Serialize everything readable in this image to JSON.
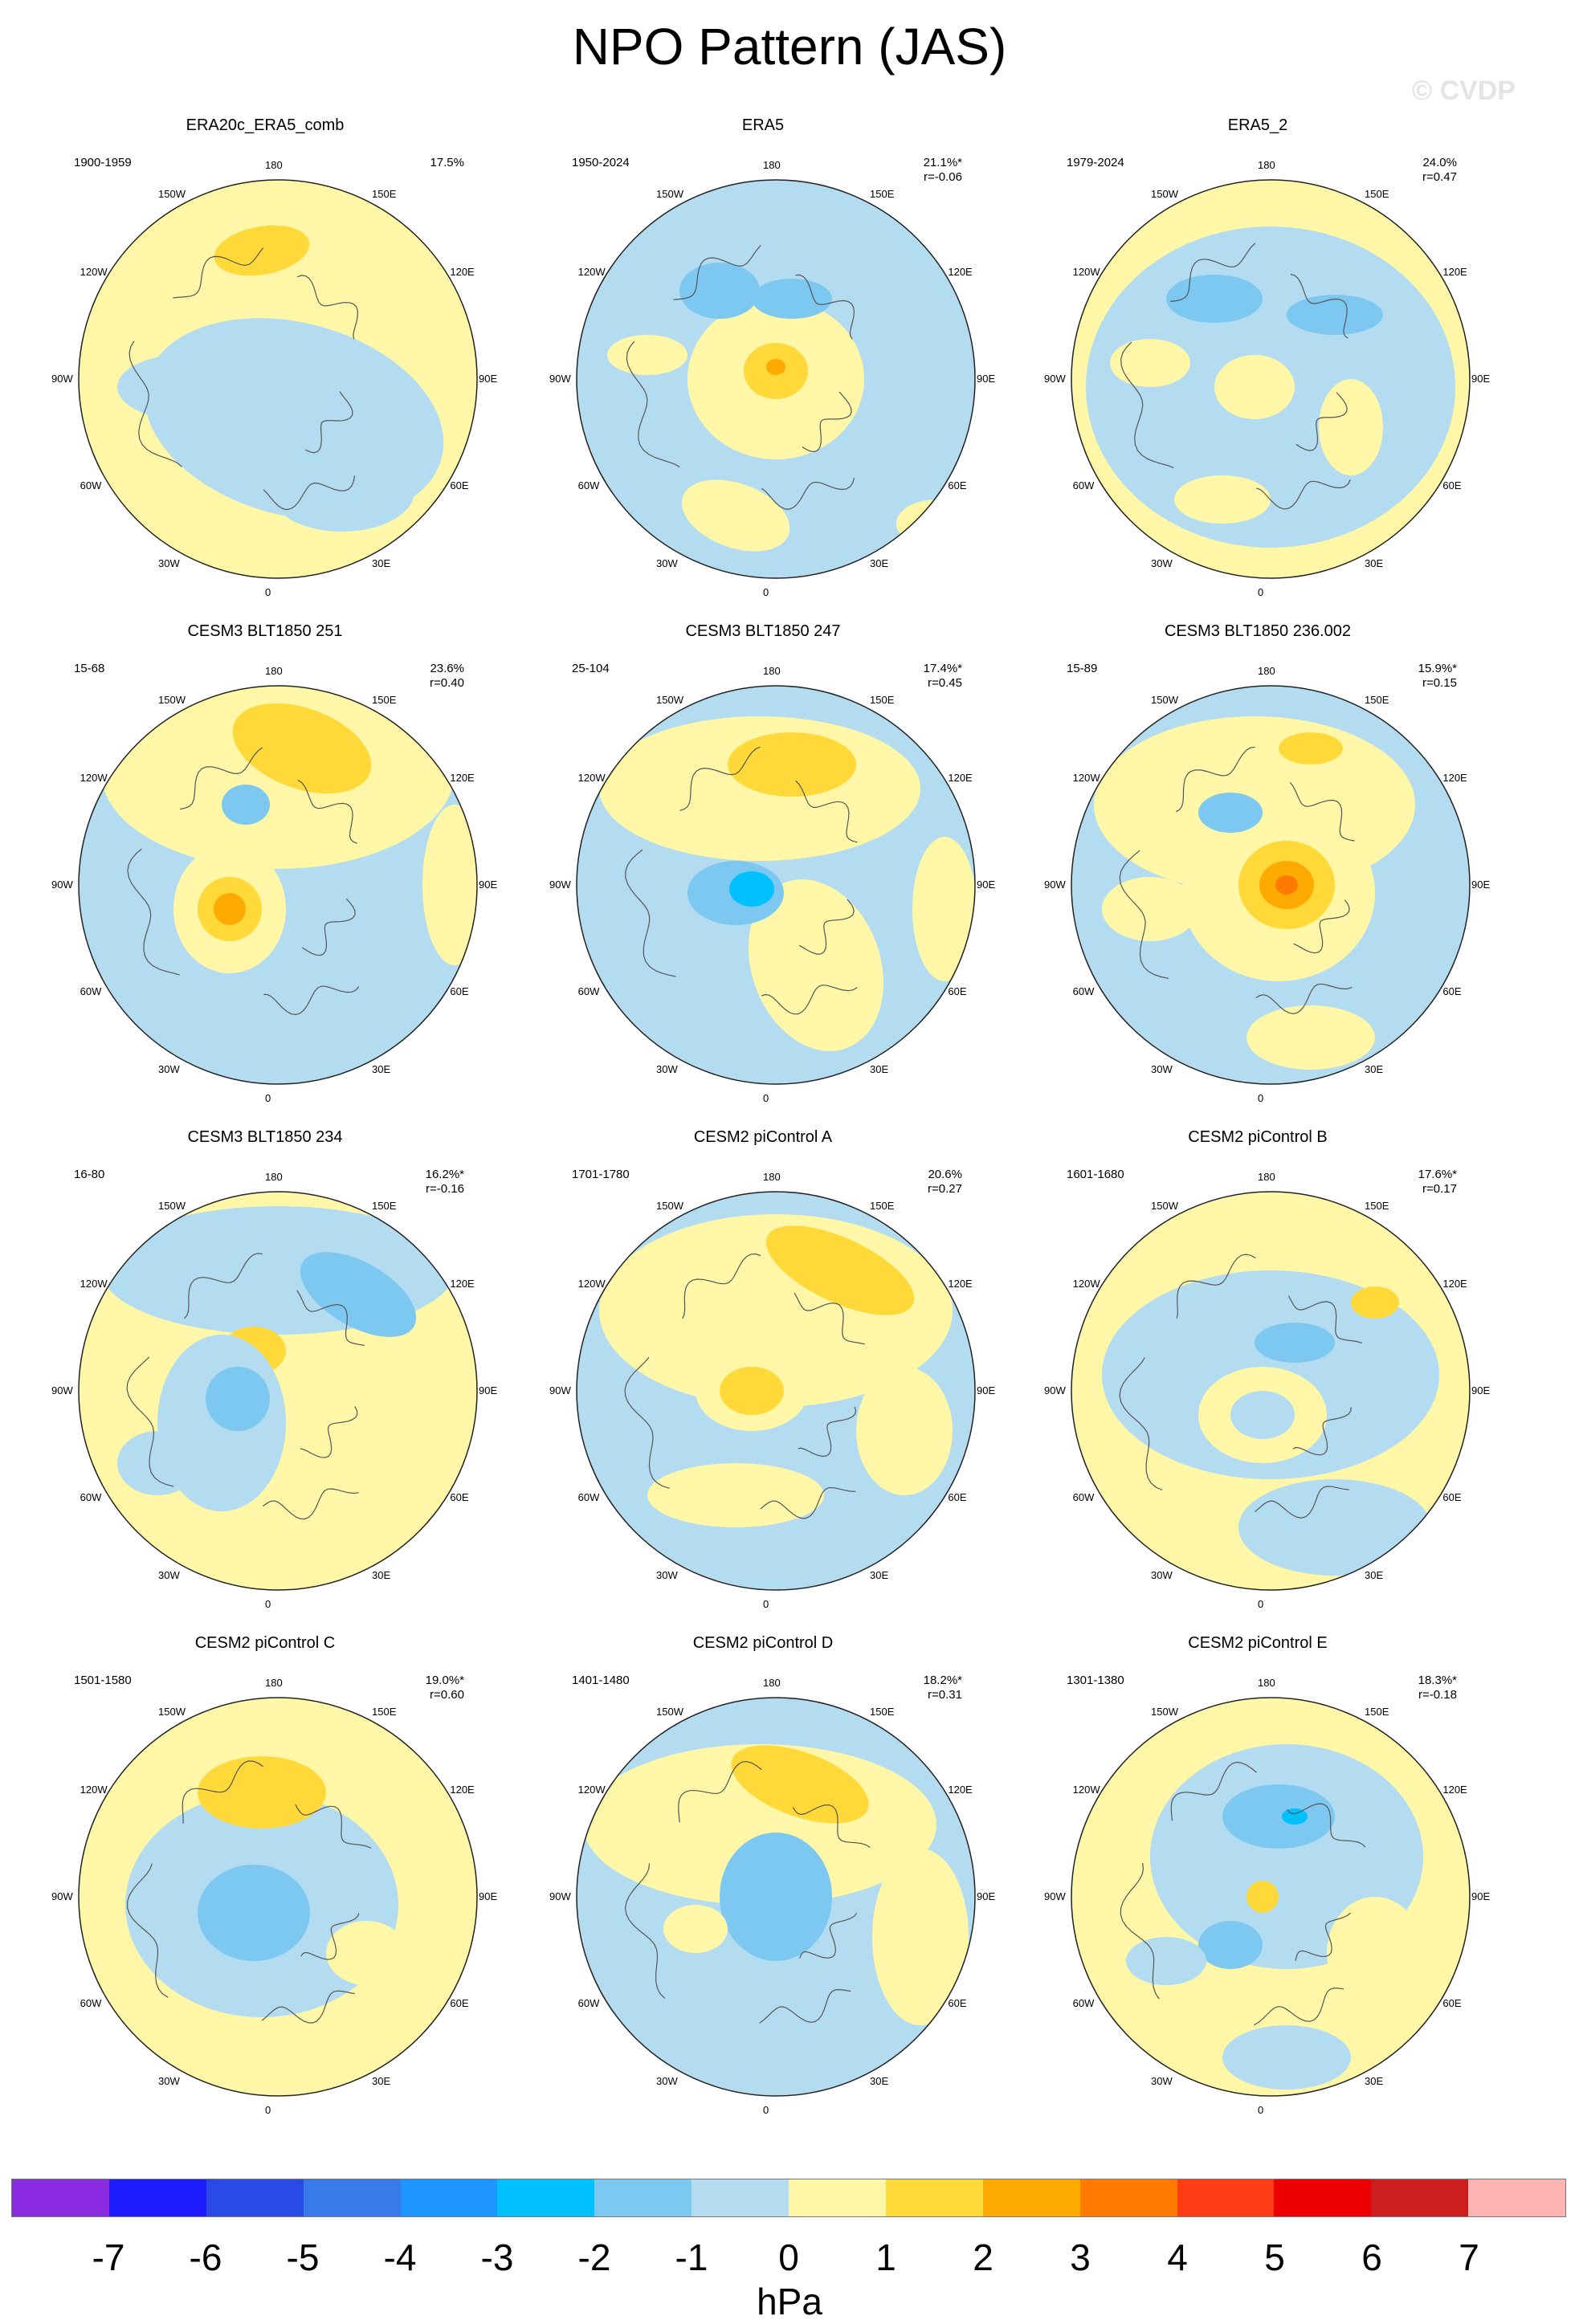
{
  "title": "NPO Pattern (JAS)",
  "watermark": "© CVDP",
  "lon_labels": [
    "180",
    "150E",
    "120E",
    "90E",
    "60E",
    "30E",
    "0",
    "30W",
    "60W",
    "90W",
    "120W",
    "150W"
  ],
  "panels": [
    {
      "title": "ERA20c_ERA5_comb",
      "years": "1900-1959",
      "pct": "17.5%",
      "r": ""
    },
    {
      "title": "ERA5",
      "years": "1950-2024",
      "pct": "21.1%*",
      "r": "r=-0.06"
    },
    {
      "title": "ERA5_2",
      "years": "1979-2024",
      "pct": "24.0%",
      "r": "r=0.47"
    },
    {
      "title": "CESM3 BLT1850 251",
      "years": "15-68",
      "pct": "23.6%",
      "r": "r=0.40"
    },
    {
      "title": "CESM3 BLT1850 247",
      "years": "25-104",
      "pct": "17.4%*",
      "r": "r=0.45"
    },
    {
      "title": "CESM3 BLT1850 236.002",
      "years": "15-89",
      "pct": "15.9%*",
      "r": "r=0.15"
    },
    {
      "title": "CESM3 BLT1850 234",
      "years": "16-80",
      "pct": "16.2%*",
      "r": "r=-0.16"
    },
    {
      "title": "CESM2 piControl A",
      "years": "1701-1780",
      "pct": "20.6%",
      "r": "r=0.27"
    },
    {
      "title": "CESM2 piControl B",
      "years": "1601-1680",
      "pct": "17.6%*",
      "r": "r=0.17"
    },
    {
      "title": "CESM2 piControl C",
      "years": "1501-1580",
      "pct": "19.0%*",
      "r": "r=0.60"
    },
    {
      "title": "CESM2 piControl D",
      "years": "1401-1480",
      "pct": "18.2%*",
      "r": "r=0.31"
    },
    {
      "title": "CESM2 piControl E",
      "years": "1301-1380",
      "pct": "18.3%*",
      "r": "r=-0.18"
    }
  ],
  "colorbar": {
    "colors": [
      "#8a2be2",
      "#1c1cff",
      "#2a4ae6",
      "#3a7ae8",
      "#1e96ff",
      "#00c0ff",
      "#7cc8f0",
      "#b4dcf0",
      "#fff7a8",
      "#ffd83a",
      "#ffaa00",
      "#ff7a00",
      "#ff3c14",
      "#ee0000",
      "#cc1e1e",
      "#ffb4b4"
    ],
    "ticks": [
      "-7",
      "-6",
      "-5",
      "-4",
      "-3",
      "-2",
      "-1",
      "0",
      "1",
      "2",
      "3",
      "4",
      "5",
      "6",
      "7"
    ],
    "unit": "hPa"
  },
  "colors": {
    "positive_weak": "#fff7a8",
    "negative_weak": "#b4dcf0",
    "positive_mid": "#ffd83a",
    "negative_mid": "#7cc8f0",
    "positive_strong": "#ffaa00",
    "negative_strong": "#1e96ff",
    "positive_extreme": "#ff7a00",
    "negative_extreme": "#00c0ff"
  }
}
